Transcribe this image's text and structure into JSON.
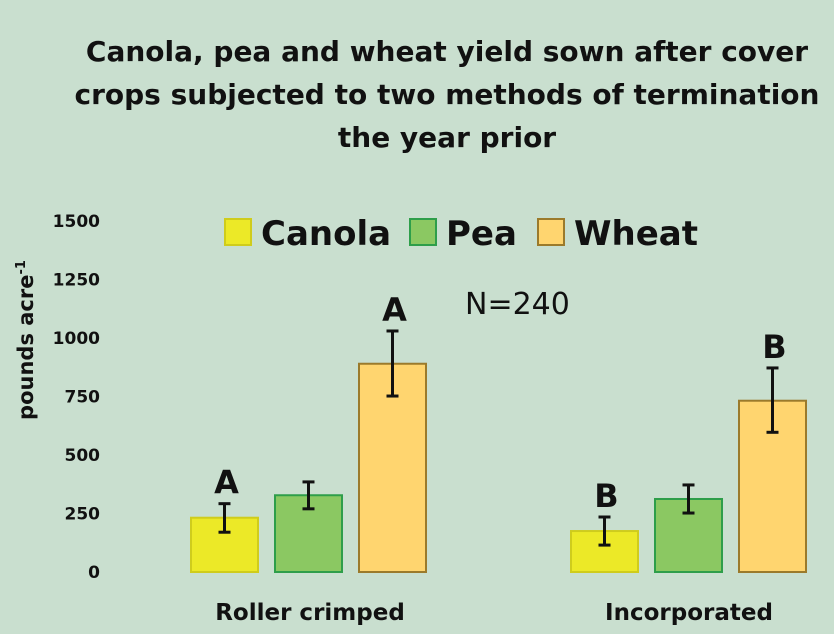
{
  "chart_data": {
    "type": "bar",
    "title_lines": [
      "Canola, pea and wheat yield sown after cover",
      "crops subjected to two methods of termination",
      "the year prior"
    ],
    "ylabel_main": "pounds acre",
    "ylabel_sup": "-1",
    "xlabel": "",
    "ylim": [
      0,
      1500
    ],
    "yticks": [
      0,
      250,
      500,
      750,
      1000,
      1250,
      1500
    ],
    "categories": [
      "Roller crimped",
      "Incorporated"
    ],
    "series": [
      {
        "name": "Canola",
        "color": "#ece927",
        "stroke": "#cfcc1c",
        "values": [
          232,
          175
        ],
        "err_low": [
          170,
          115
        ],
        "err_high": [
          292,
          235
        ],
        "letters": [
          "A",
          "B"
        ]
      },
      {
        "name": "Pea",
        "color": "#8bc862",
        "stroke": "#2e9e4a",
        "values": [
          328,
          312
        ],
        "err_low": [
          270,
          252
        ],
        "err_high": [
          385,
          372
        ],
        "letters": [
          "",
          ""
        ]
      },
      {
        "name": "Wheat",
        "color": "#ffd56f",
        "stroke": "#9b7a2b",
        "values": [
          890,
          732
        ],
        "err_low": [
          752,
          597
        ],
        "err_high": [
          1030,
          872
        ],
        "letters": [
          "A",
          "B"
        ]
      }
    ],
    "annotation": "N=240",
    "legend_position": "top",
    "grid": false
  }
}
